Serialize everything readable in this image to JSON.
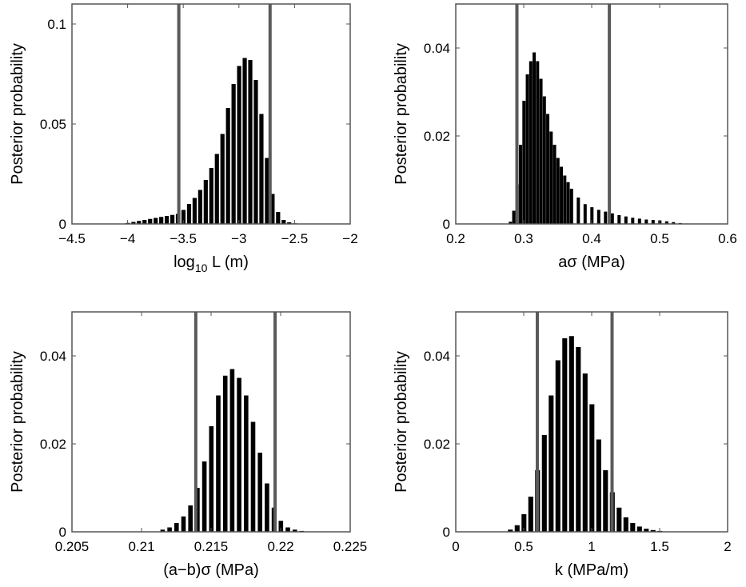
{
  "chart_data": [
    {
      "type": "bar",
      "ylabel": "Posterior probability",
      "xlabel": {
        "main": "log",
        "sub": "10",
        "rest": " L  (m)"
      },
      "xlim": [
        -4.5,
        -2
      ],
      "ylim": [
        0,
        0.11
      ],
      "xticks": [
        -4.5,
        -4,
        -3.5,
        -3,
        -2.5,
        -2
      ],
      "xtick_labels": [
        "−4.5",
        "−4",
        "−3.5",
        "−3",
        "−2.5",
        "−2"
      ],
      "yticks": [
        0,
        0.05,
        0.1
      ],
      "ytick_labels": [
        "0",
        "0.05",
        "0.1"
      ],
      "bounds": [
        -3.54,
        -2.72
      ],
      "x": [
        -4.0,
        -3.95,
        -3.9,
        -3.85,
        -3.8,
        -3.75,
        -3.7,
        -3.65,
        -3.6,
        -3.55,
        -3.5,
        -3.45,
        -3.4,
        -3.35,
        -3.3,
        -3.25,
        -3.2,
        -3.15,
        -3.1,
        -3.05,
        -3.0,
        -2.95,
        -2.9,
        -2.85,
        -2.8,
        -2.75,
        -2.7,
        -2.65,
        -2.6,
        -2.55,
        -2.5
      ],
      "values": [
        0.0005,
        0.001,
        0.0015,
        0.002,
        0.0025,
        0.003,
        0.0035,
        0.004,
        0.0045,
        0.005,
        0.007,
        0.01,
        0.013,
        0.017,
        0.022,
        0.028,
        0.035,
        0.045,
        0.058,
        0.07,
        0.079,
        0.083,
        0.082,
        0.072,
        0.055,
        0.033,
        0.015,
        0.006,
        0.002,
        0.0008,
        0.0003
      ]
    },
    {
      "type": "bar",
      "ylabel": "Posterior probability",
      "xlabel": {
        "main": "aσ (MPa)"
      },
      "xlim": [
        0.2,
        0.6
      ],
      "ylim": [
        0,
        0.05
      ],
      "xticks": [
        0.2,
        0.3,
        0.4,
        0.5,
        0.6
      ],
      "xtick_labels": [
        "0.2",
        "0.3",
        "0.4",
        "0.5",
        "0.6"
      ],
      "yticks": [
        0,
        0.02,
        0.04
      ],
      "ytick_labels": [
        "0",
        "0.02",
        "0.04"
      ],
      "bounds": [
        0.29,
        0.426
      ],
      "x": [
        0.28,
        0.285,
        0.29,
        0.295,
        0.3,
        0.305,
        0.31,
        0.315,
        0.32,
        0.325,
        0.33,
        0.335,
        0.34,
        0.345,
        0.35,
        0.355,
        0.36,
        0.365,
        0.37,
        0.38,
        0.39,
        0.4,
        0.41,
        0.42,
        0.43,
        0.44,
        0.45,
        0.46,
        0.47,
        0.48,
        0.49,
        0.5,
        0.51,
        0.52,
        0.53,
        0.54
      ],
      "values": [
        0.0005,
        0.003,
        0.009,
        0.018,
        0.028,
        0.034,
        0.037,
        0.039,
        0.037,
        0.033,
        0.029,
        0.025,
        0.021,
        0.018,
        0.015,
        0.013,
        0.011,
        0.0095,
        0.008,
        0.006,
        0.0045,
        0.0038,
        0.0032,
        0.0028,
        0.0024,
        0.002,
        0.0017,
        0.0014,
        0.0012,
        0.001,
        0.0009,
        0.0008,
        0.0006,
        0.0004,
        0.0002,
        0.0001
      ]
    },
    {
      "type": "bar",
      "ylabel": "Posterior probability",
      "xlabel": {
        "main": "(a−b)σ (MPa)"
      },
      "xlim": [
        0.205,
        0.225
      ],
      "ylim": [
        0,
        0.05
      ],
      "xticks": [
        0.205,
        0.21,
        0.215,
        0.22,
        0.225
      ],
      "xtick_labels": [
        "0.205",
        "0.21",
        "0.215",
        "0.22",
        "0.225"
      ],
      "yticks": [
        0,
        0.02,
        0.04
      ],
      "ytick_labels": [
        "0",
        "0.02",
        "0.04"
      ],
      "bounds": [
        0.2139,
        0.2196
      ],
      "x": [
        0.2115,
        0.212,
        0.2125,
        0.213,
        0.2135,
        0.214,
        0.2145,
        0.215,
        0.2155,
        0.216,
        0.2165,
        0.217,
        0.2175,
        0.218,
        0.2185,
        0.219,
        0.2195,
        0.22,
        0.2205,
        0.221,
        0.2215
      ],
      "values": [
        0.0005,
        0.001,
        0.002,
        0.0035,
        0.006,
        0.01,
        0.016,
        0.024,
        0.031,
        0.0355,
        0.037,
        0.035,
        0.031,
        0.025,
        0.018,
        0.011,
        0.0055,
        0.0025,
        0.001,
        0.0005,
        0.0002
      ]
    },
    {
      "type": "bar",
      "ylabel": "Posterior probability",
      "xlabel": {
        "main": "k (MPa/m)"
      },
      "xlim": [
        0,
        2
      ],
      "ylim": [
        0,
        0.05
      ],
      "xticks": [
        0,
        0.5,
        1,
        1.5,
        2
      ],
      "xtick_labels": [
        "0",
        "0.5",
        "1",
        "1.5",
        "2"
      ],
      "yticks": [
        0,
        0.02,
        0.04
      ],
      "ytick_labels": [
        "0",
        "0.02",
        "0.04"
      ],
      "bounds": [
        0.6,
        1.15
      ],
      "x": [
        0.4,
        0.45,
        0.5,
        0.55,
        0.6,
        0.65,
        0.7,
        0.75,
        0.8,
        0.85,
        0.9,
        0.95,
        1.0,
        1.05,
        1.1,
        1.15,
        1.2,
        1.25,
        1.3,
        1.35,
        1.4,
        1.45,
        1.5
      ],
      "values": [
        0.0005,
        0.0015,
        0.004,
        0.008,
        0.014,
        0.022,
        0.031,
        0.039,
        0.044,
        0.0445,
        0.042,
        0.036,
        0.029,
        0.021,
        0.014,
        0.009,
        0.0055,
        0.0033,
        0.002,
        0.0012,
        0.0007,
        0.0004,
        0.0002
      ]
    }
  ]
}
